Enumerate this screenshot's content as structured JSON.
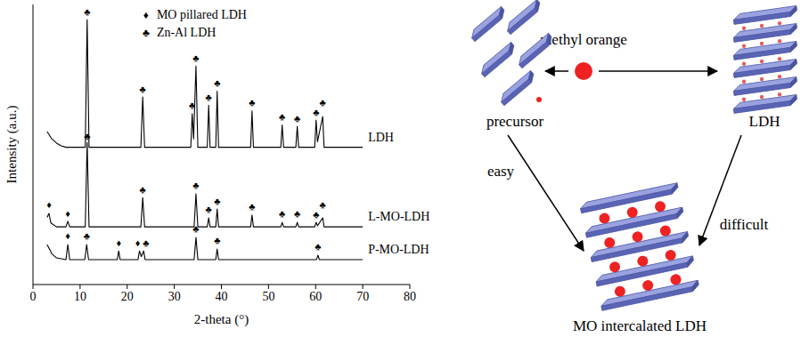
{
  "chart_data": {
    "type": "line",
    "x_label": "2-theta (°)",
    "y_label": "Intensity (a.u.)",
    "xlim": [
      0,
      80
    ],
    "xticks": [
      0,
      10,
      20,
      30,
      40,
      50,
      60,
      70,
      80
    ],
    "ylim": [
      0,
      100
    ],
    "yticks": [],
    "tick_labels": "x",
    "legend": "top",
    "markers": [
      {
        "symbol": "♦",
        "name": "MO pillared LDH"
      },
      {
        "symbol": "♣",
        "name": "Zn-Al LDH"
      }
    ],
    "series": [
      {
        "name": "LDH",
        "color": "#000000",
        "x": [
          3,
          4,
          5,
          6,
          7,
          11.1,
          11.5,
          11.9,
          22.9,
          23.3,
          23.7,
          33.5,
          33.8,
          34.1,
          34.6,
          35.0,
          37.0,
          37.3,
          37.6,
          38.8,
          39.1,
          39.4,
          46.2,
          46.5,
          46.8,
          52.6,
          52.9,
          53.2,
          55.8,
          56.1,
          56.4,
          59.8,
          60.1,
          60.4,
          61.5,
          61.8,
          70
        ],
        "values": [
          54.6,
          52,
          50.5,
          49.5,
          49,
          49,
          94.6,
          49,
          49,
          67,
          49,
          49,
          61,
          52,
          78,
          49,
          49,
          64,
          49,
          49,
          69,
          49,
          49,
          62,
          49,
          49,
          57,
          49,
          49,
          56.5,
          49,
          49,
          58.7,
          51,
          60,
          49,
          49
        ]
      },
      {
        "name": "L-MO-LDH",
        "color": "#000000",
        "x": [
          3,
          3.4,
          3.8,
          5,
          7.0,
          7.4,
          7.8,
          11.1,
          11.5,
          11.9,
          22.9,
          23.3,
          23.7,
          34.2,
          34.6,
          35.0,
          37.0,
          37.3,
          37.6,
          38.8,
          39.1,
          39.4,
          46.2,
          46.5,
          46.8,
          52.6,
          52.9,
          53.2,
          55.8,
          56.1,
          56.4,
          59.8,
          60.1,
          60.4,
          61.5,
          61.8,
          70
        ],
        "values": [
          24,
          25.4,
          22,
          20.6,
          20.6,
          22.6,
          20.6,
          20.6,
          50.8,
          20.6,
          20.6,
          31,
          20.6,
          20.6,
          32.4,
          20.6,
          20.6,
          23.8,
          20.6,
          20.6,
          27,
          20.6,
          20.6,
          24.8,
          20.6,
          20.6,
          22.2,
          20.6,
          20.6,
          22.2,
          20.6,
          20.6,
          22.2,
          21,
          23.8,
          20.6,
          20.6
        ]
      },
      {
        "name": "P-MO-LDH",
        "color": "#000000",
        "x": [
          3,
          4,
          5,
          7.0,
          7.4,
          7.8,
          11.0,
          11.4,
          11.8,
          17.9,
          18.2,
          18.5,
          22.3,
          22.6,
          23.0,
          23.5,
          23.8,
          34.2,
          34.6,
          35.0,
          38.8,
          39.1,
          39.4,
          60.2,
          60.5,
          60.8,
          70
        ],
        "values": [
          14.3,
          11,
          9.5,
          8.9,
          14.3,
          8.9,
          8.9,
          14.3,
          8.9,
          8.9,
          12,
          8.9,
          8.9,
          12,
          10,
          12,
          8.9,
          8.9,
          16.8,
          8.9,
          8.9,
          12.7,
          8.9,
          8.9,
          10.5,
          8.9,
          8.9
        ]
      }
    ],
    "annotations": [
      {
        "text": "♣",
        "x": 11.5,
        "y": 97.5
      },
      {
        "text": "♣",
        "x": 23.3,
        "y": 70
      },
      {
        "text": "♣",
        "x": 33.8,
        "y": 64
      },
      {
        "text": "♣",
        "x": 34.6,
        "y": 81
      },
      {
        "text": "♣",
        "x": 37.3,
        "y": 67
      },
      {
        "text": "♣",
        "x": 39.1,
        "y": 72
      },
      {
        "text": "♣",
        "x": 46.5,
        "y": 65
      },
      {
        "text": "♣",
        "x": 52.9,
        "y": 60
      },
      {
        "text": "♣",
        "x": 56.1,
        "y": 59.5
      },
      {
        "text": "♣",
        "x": 60.1,
        "y": 61.5
      },
      {
        "text": "♣",
        "x": 61.5,
        "y": 65
      },
      {
        "text": "♦",
        "x": 3.4,
        "y": 28.5
      },
      {
        "text": "♦",
        "x": 7.4,
        "y": 25.5
      },
      {
        "text": "♣",
        "x": 11.5,
        "y": 53
      },
      {
        "text": "♣",
        "x": 23.3,
        "y": 34
      },
      {
        "text": "♣",
        "x": 34.6,
        "y": 35.5
      },
      {
        "text": "♣",
        "x": 37.3,
        "y": 27
      },
      {
        "text": "♣",
        "x": 39.1,
        "y": 30
      },
      {
        "text": "♣",
        "x": 46.5,
        "y": 28
      },
      {
        "text": "♣",
        "x": 52.9,
        "y": 25.5
      },
      {
        "text": "♣",
        "x": 56.1,
        "y": 25.5
      },
      {
        "text": "♣",
        "x": 60.1,
        "y": 25
      },
      {
        "text": "♣",
        "x": 61.5,
        "y": 28.5
      },
      {
        "text": "♦",
        "x": 7.4,
        "y": 17.5
      },
      {
        "text": "♣",
        "x": 11.4,
        "y": 17.5
      },
      {
        "text": "♦",
        "x": 18.2,
        "y": 15
      },
      {
        "text": "♦",
        "x": 22.6,
        "y": 15
      },
      {
        "text": "♣",
        "x": 23.5,
        "y": 15
      },
      {
        "text": "♣",
        "x": 34.6,
        "y": 20
      },
      {
        "text": "♣",
        "x": 39.1,
        "y": 16
      },
      {
        "text": "♣",
        "x": 60.5,
        "y": 13.5
      }
    ]
  },
  "diagram": {
    "top_label": "methyl orange",
    "left_label": "precursor",
    "right_label": "LDH",
    "left_arrow_label": "easy",
    "right_arrow_label": "difficult",
    "bottom_label": "MO intercalated LDH"
  }
}
